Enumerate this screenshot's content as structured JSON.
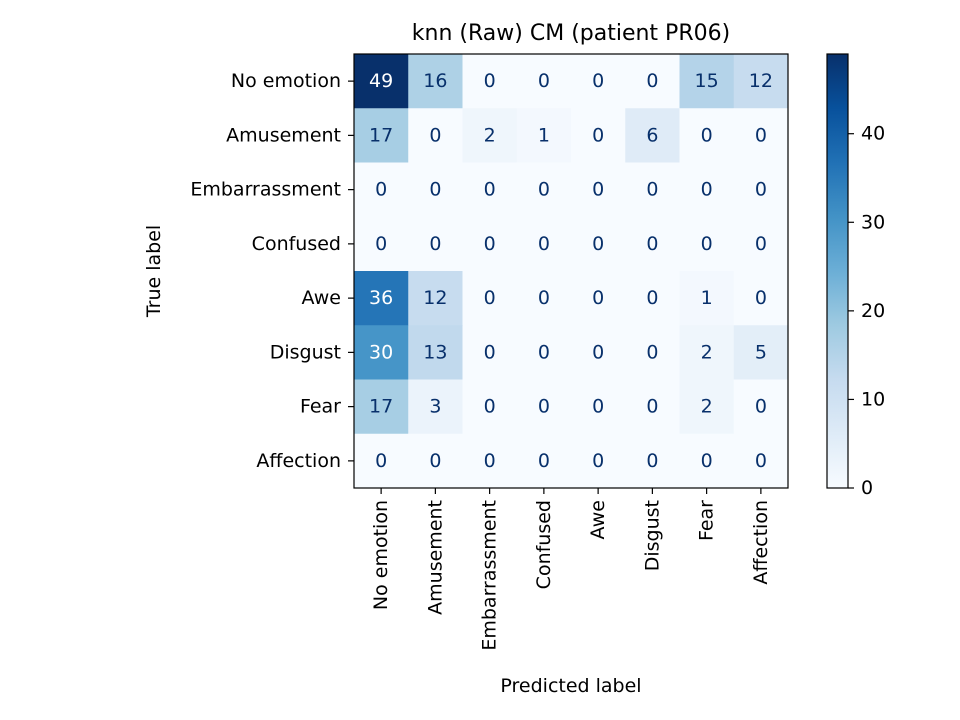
{
  "chart_data": {
    "type": "heatmap",
    "title": "knn (Raw) CM (patient PR06)",
    "xlabel": "Predicted label",
    "ylabel": "True label",
    "x_categories": [
      "No emotion",
      "Amusement",
      "Embarrassment",
      "Confused",
      "Awe",
      "Disgust",
      "Fear",
      "Affection"
    ],
    "y_categories": [
      "No emotion",
      "Amusement",
      "Embarrassment",
      "Confused",
      "Awe",
      "Disgust",
      "Fear",
      "Affection"
    ],
    "values": [
      [
        49,
        16,
        0,
        0,
        0,
        0,
        15,
        12
      ],
      [
        17,
        0,
        2,
        1,
        0,
        6,
        0,
        0
      ],
      [
        0,
        0,
        0,
        0,
        0,
        0,
        0,
        0
      ],
      [
        0,
        0,
        0,
        0,
        0,
        0,
        0,
        0
      ],
      [
        36,
        12,
        0,
        0,
        0,
        0,
        1,
        0
      ],
      [
        30,
        13,
        0,
        0,
        0,
        0,
        2,
        5
      ],
      [
        17,
        3,
        0,
        0,
        0,
        0,
        2,
        0
      ],
      [
        0,
        0,
        0,
        0,
        0,
        0,
        0,
        0
      ]
    ],
    "colormap": "Blues",
    "vmin": 0,
    "vmax": 49,
    "colorbar_ticks": [
      0,
      10,
      20,
      30,
      40
    ],
    "colorbar_tick_labels": [
      "0",
      "10",
      "20",
      "30",
      "40"
    ],
    "text_color_light": "#ffffff",
    "text_color_dark": "#08306b"
  }
}
